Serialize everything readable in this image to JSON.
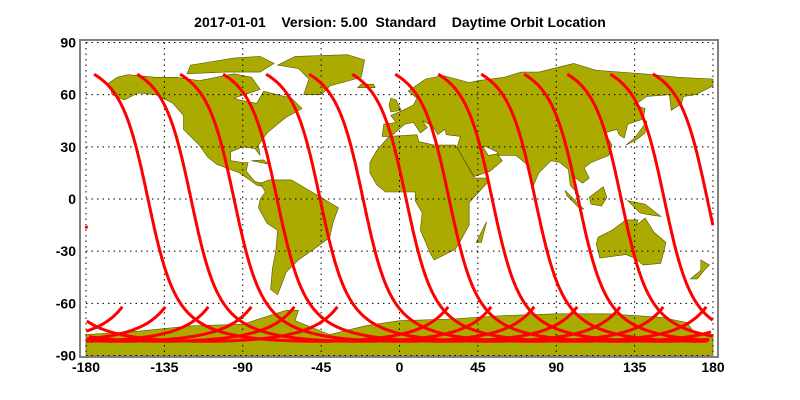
{
  "title": {
    "date": "2017-01-01",
    "version": "Version: 5.00",
    "product": "Standard",
    "label": "Daytime Orbit Location"
  },
  "map": {
    "projection": "equirectangular",
    "lon_range": [
      -180,
      180
    ],
    "lat_range": [
      -90,
      90
    ],
    "grid": true,
    "x_ticks": [
      "-180",
      "-135",
      "-90",
      "-45",
      "0",
      "45",
      "90",
      "135",
      "180"
    ],
    "y_ticks": [
      "90",
      "60",
      "30",
      "0",
      "-30",
      "-60",
      "-90"
    ],
    "colors": {
      "land": "#aaaa00",
      "track": "#ff0000",
      "grid": "#000000",
      "frame": "#808080"
    }
  },
  "orbit_tracks": {
    "type": "ascending daytime passes",
    "max_lat": 72,
    "start_lat": -62,
    "equator_crossing_lon": [
      176.7,
      152.0,
      127.3,
      102.6,
      77.9,
      53.2,
      28.5,
      3.8,
      -20.9,
      -45.6,
      -70.3,
      -95.0,
      -119.7,
      -144.4
    ],
    "first_track_start_lat": -17
  }
}
